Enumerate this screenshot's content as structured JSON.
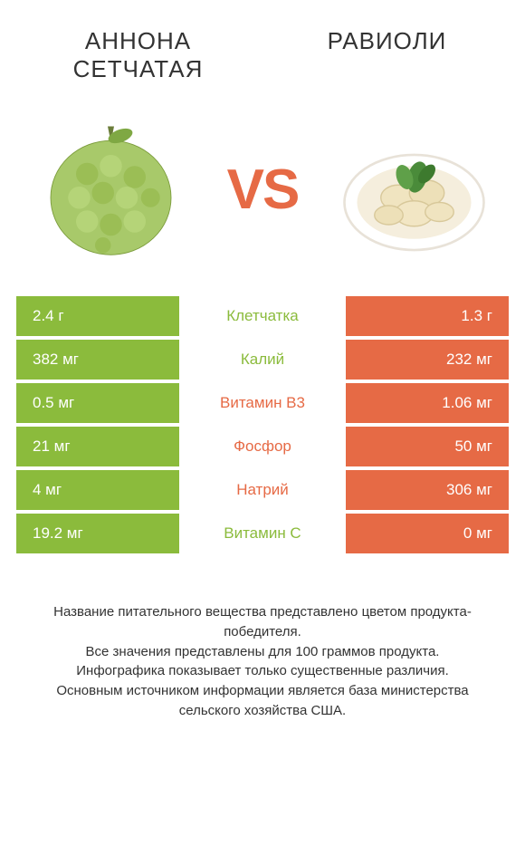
{
  "colors": {
    "green": "#8bbb3c",
    "orange": "#e66a45",
    "text": "#333333",
    "white": "#ffffff"
  },
  "left_title": "АННОНА СЕТЧАТАЯ",
  "right_title": "РАВИОЛИ",
  "vs_text": "VS",
  "rows": [
    {
      "left": "2.4 г",
      "label": "Клетчатка",
      "right": "1.3 г",
      "winner": "left"
    },
    {
      "left": "382 мг",
      "label": "Калий",
      "right": "232 мг",
      "winner": "left"
    },
    {
      "left": "0.5 мг",
      "label": "Витамин B3",
      "right": "1.06 мг",
      "winner": "right"
    },
    {
      "left": "21 мг",
      "label": "Фосфор",
      "right": "50 мг",
      "winner": "right"
    },
    {
      "left": "4 мг",
      "label": "Натрий",
      "right": "306 мг",
      "winner": "right"
    },
    {
      "left": "19.2 мг",
      "label": "Витамин C",
      "right": "0 мг",
      "winner": "left"
    }
  ],
  "footer_lines": [
    "Название питательного вещества представлено цветом продукта-победителя.",
    "Все значения представлены для 100 граммов продукта.",
    "Инфографика показывает только существенные различия.",
    "Основным источником информации является база министерства сельского хозяйства США."
  ]
}
